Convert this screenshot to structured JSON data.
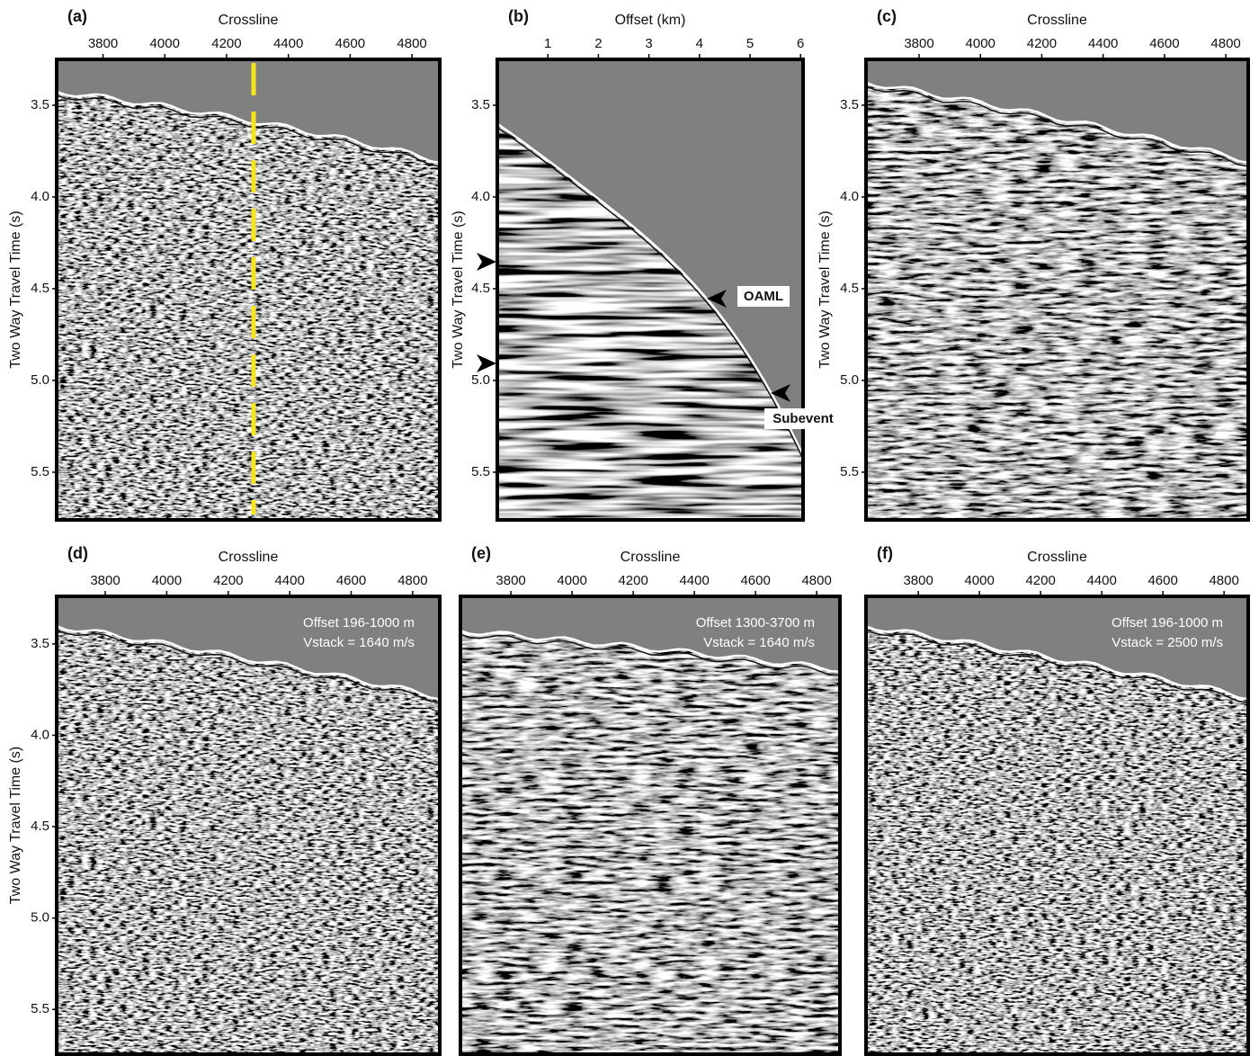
{
  "panels": [
    {
      "label": "(a)",
      "x_label": "Crossline",
      "y_label": "Two Way Travel Time (s)",
      "xlim": [
        3650,
        4890
      ],
      "xticks": [
        3800,
        4000,
        4200,
        4400,
        4600,
        4800
      ],
      "ylim": [
        3.25,
        5.76
      ],
      "yticks": [
        3.5,
        {
          "value": 4,
          "label": "4.0"
        },
        4.5,
        {
          "value": 5,
          "label": "5.0"
        },
        5.5
      ]
    },
    {
      "label": "(b)",
      "x_label": "Offset (km)",
      "y_label": "Two Way Travel Time (s)",
      "xlim": [
        0,
        6.05
      ],
      "xticks": [
        1,
        2,
        3,
        4,
        5,
        6
      ],
      "ylim": [
        3.25,
        5.76
      ],
      "yticks": [
        3.5,
        {
          "value": 4,
          "label": "4.0"
        },
        4.5,
        {
          "value": 5,
          "label": "5.0"
        },
        5.5
      ],
      "annotations": [
        "OAML",
        "Subevent"
      ]
    },
    {
      "label": "(c)",
      "x_label": "Crossline",
      "y_label": "Two Way Travel Time (s)",
      "xlim": [
        3627,
        4873
      ],
      "xticks": [
        3800,
        4000,
        4200,
        4400,
        4600,
        4800
      ],
      "ylim": [
        3.25,
        5.76
      ],
      "yticks": [
        3.5,
        {
          "value": 4,
          "label": "4.0"
        },
        4.5,
        {
          "value": 5,
          "label": "5.0"
        },
        5.5
      ]
    },
    {
      "label": "(d)",
      "x_label": "Crossline",
      "y_label": "Two Way Travel Time (s)",
      "xlim": [
        3642,
        4888
      ],
      "xticks": [
        3800,
        4000,
        4200,
        4400,
        4600,
        4800
      ],
      "ylim": [
        3.24,
        5.745
      ],
      "yticks": [
        3.5,
        {
          "value": 4,
          "label": "4.0"
        },
        4.5,
        {
          "value": 5,
          "label": "5.0"
        },
        5.5
      ],
      "annotations": [
        "Offset 196-1000 m",
        "Vstack = 1640 m/s"
      ]
    },
    {
      "label": "(e)",
      "x_label": "Crossline",
      "xlim": [
        3635,
        4876
      ],
      "xticks": [
        3800,
        4000,
        4200,
        4400,
        4600,
        4800
      ],
      "annotations": [
        "Offset 1300-3700 m",
        "Vstack = 1640 m/s"
      ]
    },
    {
      "label": "(f)",
      "x_label": "Crossline",
      "xlim": [
        3629,
        4879
      ],
      "xticks": [
        3800,
        4000,
        4200,
        4400,
        4600,
        4800
      ],
      "annotations": [
        "Offset 196-1000 m",
        "Vstack = 2500 m/s"
      ]
    }
  ]
}
